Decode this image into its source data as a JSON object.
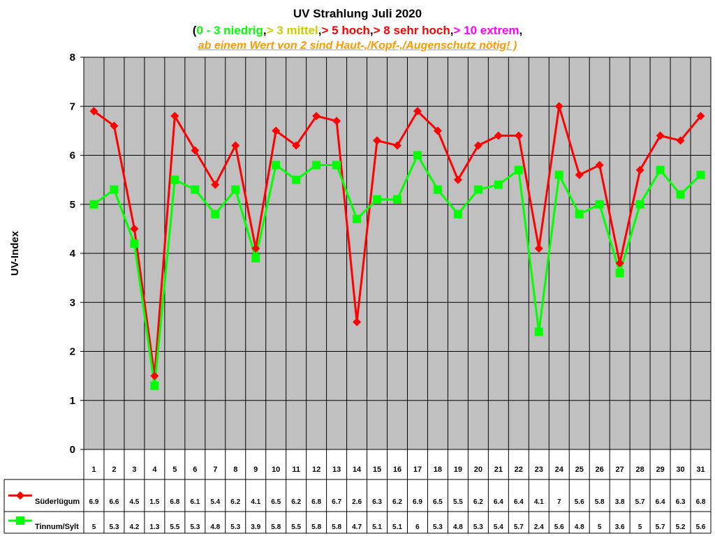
{
  "colors": {
    "plot_bg": "#c0c0c0",
    "grid": "#000000",
    "sued": "#ff0000",
    "tinnum": "#00ff00",
    "green_text": "#00ff00",
    "yellow_text": "#cccc00",
    "red_text": "#ff0000",
    "darkred_text": "#cc0000",
    "magenta_text": "#ff00ff",
    "orange_text": "#ff9900"
  },
  "chart_data": {
    "type": "line",
    "title": "UV Strahlung Juli 2020",
    "subtitle_parts": [
      {
        "text": "(",
        "color_key": "black"
      },
      {
        "text": "0 - 3 niedrig",
        "color_key": "green_text"
      },
      {
        "text": ",",
        "color_key": "black"
      },
      {
        "text": "> 3 mittel",
        "color_key": "yellow_text"
      },
      {
        "text": ",",
        "color_key": "black"
      },
      {
        "text": "> 5 hoch",
        "color_key": "red_text"
      },
      {
        "text": ",",
        "color_key": "black"
      },
      {
        "text": "> 8 sehr hoch",
        "color_key": "red_text"
      },
      {
        "text": ",",
        "color_key": "black"
      },
      {
        "text": "> 10 extrem",
        "color_key": "magenta_text"
      },
      {
        "text": ",",
        "color_key": "black"
      }
    ],
    "note_text": "ab einem Wert von 2 sind Haut-,/Kopf-,/Augenschutz nötig! )",
    "ylabel": "UV-Index",
    "ylim": [
      0,
      8
    ],
    "yticks": [
      "0",
      "1",
      "2",
      "3",
      "4",
      "5",
      "6",
      "7",
      "8"
    ],
    "categories": [
      "1",
      "2",
      "3",
      "4",
      "5",
      "6",
      "7",
      "8",
      "9",
      "10",
      "11",
      "12",
      "13",
      "14",
      "15",
      "16",
      "17",
      "18",
      "19",
      "20",
      "21",
      "22",
      "23",
      "24",
      "25",
      "26",
      "27",
      "28",
      "29",
      "30",
      "31"
    ],
    "series": [
      {
        "name": "Süderlügum",
        "color_key": "sued",
        "marker": "diamond",
        "values": [
          6.9,
          6.6,
          4.5,
          1.5,
          6.8,
          6.1,
          5.4,
          6.2,
          4.1,
          6.5,
          6.2,
          6.8,
          6.7,
          2.6,
          6.3,
          6.2,
          6.9,
          6.5,
          5.5,
          6.2,
          6.4,
          6.4,
          4.1,
          7,
          5.6,
          5.8,
          3.8,
          5.7,
          6.4,
          6.3,
          6.8
        ],
        "labels": [
          "6.9",
          "6.6",
          "4.5",
          "1.5",
          "6.8",
          "6.1",
          "5.4",
          "6.2",
          "4.1",
          "6.5",
          "6.2",
          "6.8",
          "6.7",
          "2.6",
          "6.3",
          "6.2",
          "6.9",
          "6.5",
          "5.5",
          "6.2",
          "6.4",
          "6.4",
          "4.1",
          "7",
          "5.6",
          "5.8",
          "3.8",
          "5.7",
          "6.4",
          "6.3",
          "6.8"
        ]
      },
      {
        "name": "Tinnum/Sylt",
        "color_key": "tinnum",
        "marker": "square",
        "values": [
          5,
          5.3,
          4.2,
          1.3,
          5.5,
          5.3,
          4.8,
          5.3,
          3.9,
          5.8,
          5.5,
          5.8,
          5.8,
          4.7,
          5.1,
          5.1,
          6,
          5.3,
          4.8,
          5.3,
          5.4,
          5.7,
          2.4,
          5.6,
          4.8,
          5,
          3.6,
          5,
          5.7,
          5.2,
          5.6
        ],
        "labels": [
          "5",
          "5.3",
          "4.2",
          "1.3",
          "5.5",
          "5.3",
          "4.8",
          "5.3",
          "3.9",
          "5.8",
          "5.5",
          "5.8",
          "5.8",
          "4.7",
          "5.1",
          "5.1",
          "6",
          "5.3",
          "4.8",
          "5.3",
          "5.4",
          "5.7",
          "2.4",
          "5.6",
          "4.8",
          "5",
          "3.6",
          "5",
          "5.7",
          "5.2",
          "5.6"
        ]
      }
    ],
    "grid": true,
    "data_table": true
  }
}
